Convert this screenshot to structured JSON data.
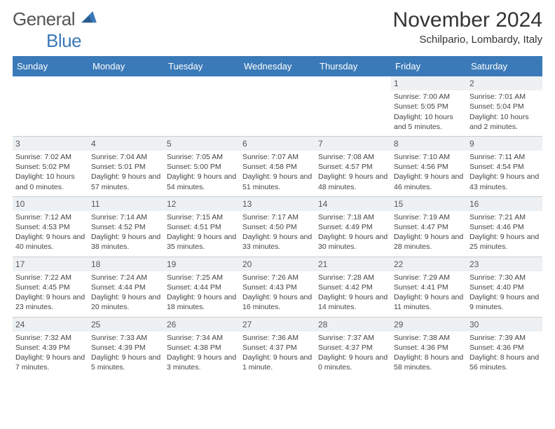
{
  "logo": {
    "word1": "General",
    "word2": "Blue"
  },
  "header": {
    "title": "November 2024",
    "subtitle": "Schilpario, Lombardy, Italy"
  },
  "colors": {
    "accent": "#3b7ab8",
    "dayband": "#eef1f3",
    "rule": "#cccccc",
    "text": "#444444"
  },
  "days_of_week": [
    "Sunday",
    "Monday",
    "Tuesday",
    "Wednesday",
    "Thursday",
    "Friday",
    "Saturday"
  ],
  "cells": [
    {
      "empty": true
    },
    {
      "empty": true
    },
    {
      "empty": true
    },
    {
      "empty": true
    },
    {
      "empty": true
    },
    {
      "num": "1",
      "sunrise": "Sunrise: 7:00 AM",
      "sunset": "Sunset: 5:05 PM",
      "daylight": "Daylight: 10 hours and 5 minutes."
    },
    {
      "num": "2",
      "sunrise": "Sunrise: 7:01 AM",
      "sunset": "Sunset: 5:04 PM",
      "daylight": "Daylight: 10 hours and 2 minutes."
    },
    {
      "num": "3",
      "sunrise": "Sunrise: 7:02 AM",
      "sunset": "Sunset: 5:02 PM",
      "daylight": "Daylight: 10 hours and 0 minutes."
    },
    {
      "num": "4",
      "sunrise": "Sunrise: 7:04 AM",
      "sunset": "Sunset: 5:01 PM",
      "daylight": "Daylight: 9 hours and 57 minutes."
    },
    {
      "num": "5",
      "sunrise": "Sunrise: 7:05 AM",
      "sunset": "Sunset: 5:00 PM",
      "daylight": "Daylight: 9 hours and 54 minutes."
    },
    {
      "num": "6",
      "sunrise": "Sunrise: 7:07 AM",
      "sunset": "Sunset: 4:58 PM",
      "daylight": "Daylight: 9 hours and 51 minutes."
    },
    {
      "num": "7",
      "sunrise": "Sunrise: 7:08 AM",
      "sunset": "Sunset: 4:57 PM",
      "daylight": "Daylight: 9 hours and 48 minutes."
    },
    {
      "num": "8",
      "sunrise": "Sunrise: 7:10 AM",
      "sunset": "Sunset: 4:56 PM",
      "daylight": "Daylight: 9 hours and 46 minutes."
    },
    {
      "num": "9",
      "sunrise": "Sunrise: 7:11 AM",
      "sunset": "Sunset: 4:54 PM",
      "daylight": "Daylight: 9 hours and 43 minutes."
    },
    {
      "num": "10",
      "sunrise": "Sunrise: 7:12 AM",
      "sunset": "Sunset: 4:53 PM",
      "daylight": "Daylight: 9 hours and 40 minutes."
    },
    {
      "num": "11",
      "sunrise": "Sunrise: 7:14 AM",
      "sunset": "Sunset: 4:52 PM",
      "daylight": "Daylight: 9 hours and 38 minutes."
    },
    {
      "num": "12",
      "sunrise": "Sunrise: 7:15 AM",
      "sunset": "Sunset: 4:51 PM",
      "daylight": "Daylight: 9 hours and 35 minutes."
    },
    {
      "num": "13",
      "sunrise": "Sunrise: 7:17 AM",
      "sunset": "Sunset: 4:50 PM",
      "daylight": "Daylight: 9 hours and 33 minutes."
    },
    {
      "num": "14",
      "sunrise": "Sunrise: 7:18 AM",
      "sunset": "Sunset: 4:49 PM",
      "daylight": "Daylight: 9 hours and 30 minutes."
    },
    {
      "num": "15",
      "sunrise": "Sunrise: 7:19 AM",
      "sunset": "Sunset: 4:47 PM",
      "daylight": "Daylight: 9 hours and 28 minutes."
    },
    {
      "num": "16",
      "sunrise": "Sunrise: 7:21 AM",
      "sunset": "Sunset: 4:46 PM",
      "daylight": "Daylight: 9 hours and 25 minutes."
    },
    {
      "num": "17",
      "sunrise": "Sunrise: 7:22 AM",
      "sunset": "Sunset: 4:45 PM",
      "daylight": "Daylight: 9 hours and 23 minutes."
    },
    {
      "num": "18",
      "sunrise": "Sunrise: 7:24 AM",
      "sunset": "Sunset: 4:44 PM",
      "daylight": "Daylight: 9 hours and 20 minutes."
    },
    {
      "num": "19",
      "sunrise": "Sunrise: 7:25 AM",
      "sunset": "Sunset: 4:44 PM",
      "daylight": "Daylight: 9 hours and 18 minutes."
    },
    {
      "num": "20",
      "sunrise": "Sunrise: 7:26 AM",
      "sunset": "Sunset: 4:43 PM",
      "daylight": "Daylight: 9 hours and 16 minutes."
    },
    {
      "num": "21",
      "sunrise": "Sunrise: 7:28 AM",
      "sunset": "Sunset: 4:42 PM",
      "daylight": "Daylight: 9 hours and 14 minutes."
    },
    {
      "num": "22",
      "sunrise": "Sunrise: 7:29 AM",
      "sunset": "Sunset: 4:41 PM",
      "daylight": "Daylight: 9 hours and 11 minutes."
    },
    {
      "num": "23",
      "sunrise": "Sunrise: 7:30 AM",
      "sunset": "Sunset: 4:40 PM",
      "daylight": "Daylight: 9 hours and 9 minutes."
    },
    {
      "num": "24",
      "sunrise": "Sunrise: 7:32 AM",
      "sunset": "Sunset: 4:39 PM",
      "daylight": "Daylight: 9 hours and 7 minutes."
    },
    {
      "num": "25",
      "sunrise": "Sunrise: 7:33 AM",
      "sunset": "Sunset: 4:39 PM",
      "daylight": "Daylight: 9 hours and 5 minutes."
    },
    {
      "num": "26",
      "sunrise": "Sunrise: 7:34 AM",
      "sunset": "Sunset: 4:38 PM",
      "daylight": "Daylight: 9 hours and 3 minutes."
    },
    {
      "num": "27",
      "sunrise": "Sunrise: 7:36 AM",
      "sunset": "Sunset: 4:37 PM",
      "daylight": "Daylight: 9 hours and 1 minute."
    },
    {
      "num": "28",
      "sunrise": "Sunrise: 7:37 AM",
      "sunset": "Sunset: 4:37 PM",
      "daylight": "Daylight: 9 hours and 0 minutes."
    },
    {
      "num": "29",
      "sunrise": "Sunrise: 7:38 AM",
      "sunset": "Sunset: 4:36 PM",
      "daylight": "Daylight: 8 hours and 58 minutes."
    },
    {
      "num": "30",
      "sunrise": "Sunrise: 7:39 AM",
      "sunset": "Sunset: 4:36 PM",
      "daylight": "Daylight: 8 hours and 56 minutes."
    }
  ]
}
